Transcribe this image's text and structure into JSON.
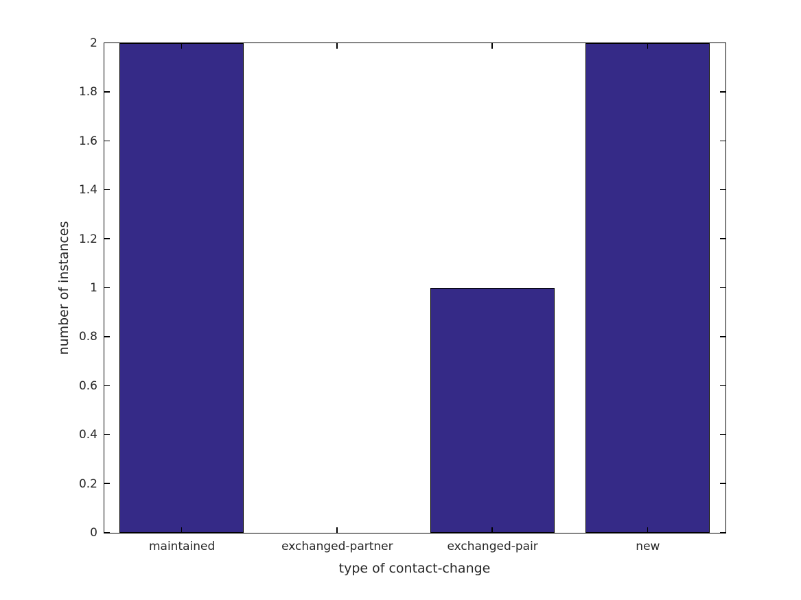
{
  "figure": {
    "background": "#ffffff"
  },
  "chart_data": {
    "type": "bar",
    "title": "",
    "xlabel": "type of contact-change",
    "ylabel": "number of instances",
    "categories": [
      "maintained",
      "exchanged-partner",
      "exchanged-pair",
      "new"
    ],
    "values": [
      2,
      0,
      1,
      2
    ],
    "ylim": [
      0,
      2
    ],
    "ytick_step": 0.2,
    "ytick_labels": [
      "0",
      "0.2",
      "0.4",
      "0.6",
      "0.8",
      "1",
      "1.2",
      "1.4",
      "1.6",
      "1.8",
      "2"
    ],
    "bar_width_fraction": 0.8,
    "bar_color": "#352a87",
    "bar_edge_color": "#000000",
    "axis_color": "#000000",
    "text_color": "#262626",
    "grid": false,
    "tick_direction": "in",
    "box": true
  }
}
